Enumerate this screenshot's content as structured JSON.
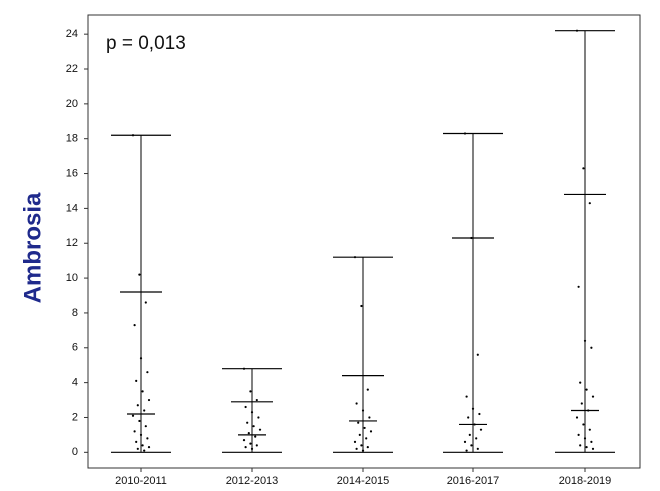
{
  "chart_data": {
    "type": "box",
    "annotation": "p = 0,013",
    "ylabel": "Ambrosia",
    "categories": [
      "2010-2011",
      "2012-2013",
      "2014-2015",
      "2016-2017",
      "2018-2019"
    ],
    "min": [
      0,
      0,
      0,
      0,
      0
    ],
    "max": [
      18.2,
      4.8,
      11.2,
      18.3,
      24.2
    ],
    "mean": [
      9.2,
      2.9,
      4.4,
      12.3,
      14.8
    ],
    "median": [
      2.2,
      1.0,
      1.8,
      1.6,
      2.4
    ],
    "points": [
      [
        18.2,
        10.2,
        8.6,
        7.3,
        5.4,
        4.6,
        4.1,
        3.5,
        3.0,
        2.7,
        2.4,
        2.1,
        1.8,
        1.5,
        1.2,
        1.0,
        0.8,
        0.6,
        0.4,
        0.3,
        0.2,
        0.1
      ],
      [
        4.8,
        3.5,
        3.0,
        2.6,
        2.3,
        2.0,
        1.7,
        1.5,
        1.3,
        1.1,
        0.9,
        0.7,
        0.5,
        0.4,
        0.3,
        0.2
      ],
      [
        11.2,
        8.4,
        3.6,
        2.8,
        2.4,
        2.0,
        1.7,
        1.4,
        1.2,
        1.0,
        0.8,
        0.6,
        0.4,
        0.3,
        0.2,
        0.1
      ],
      [
        18.3,
        12.3,
        5.6,
        3.2,
        2.5,
        2.2,
        2.0,
        1.6,
        1.3,
        1.0,
        0.8,
        0.6,
        0.4,
        0.2,
        0.1
      ],
      [
        24.2,
        16.3,
        14.3,
        9.5,
        6.4,
        6.0,
        4.0,
        3.6,
        3.2,
        2.8,
        2.4,
        2.0,
        1.6,
        1.3,
        1.0,
        0.8,
        0.6,
        0.4,
        0.3,
        0.2
      ]
    ],
    "color": "#000000",
    "ylim": [
      -0.9,
      25.1
    ],
    "yticks": [
      0,
      2,
      4,
      6,
      8,
      10,
      12,
      14,
      16,
      18,
      20,
      22,
      24
    ],
    "grid": false
  }
}
